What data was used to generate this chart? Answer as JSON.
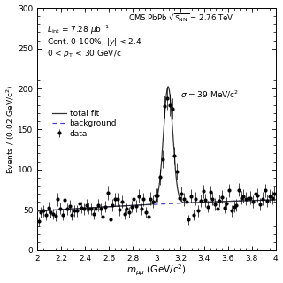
{
  "xlabel": "m_{μμ} (GeV/c^{2})",
  "ylabel": "Events / (0.02 GeV/c^{2})",
  "xlim": [
    2.0,
    4.0
  ],
  "ylim": [
    0,
    300
  ],
  "yticks": [
    0,
    50,
    100,
    150,
    200,
    250,
    300
  ],
  "xticks": [
    2.0,
    2.2,
    2.4,
    2.6,
    2.8,
    3.0,
    3.2,
    3.4,
    3.6,
    3.8,
    4.0
  ],
  "jpsi_mass": 3.097,
  "jpsi_sigma": 0.039,
  "jpsi_amplitude": 145.0,
  "bg_a": 48.5,
  "bg_b": 10.0,
  "bg_c": -1.5,
  "data_seed": 7,
  "background_color": "#ffffff",
  "data_color": "#000000",
  "fit_color": "#333333",
  "bg_color": "#4444cc",
  "legend_marker": "data",
  "legend_fit": "total fit",
  "legend_bg": "background",
  "text_cms": "CMS PbPb",
  "text_energy": " = 2.76 TeV",
  "text_lumi": "$L_{\\rm int}$ = 7.28 μb$^{-1}$",
  "text_cent": "Cent. 0-100%, |y| < 2.4",
  "text_pt": "0 < $p_{\\rm T}$ < 30 GeV/c",
  "text_sigma": "σ = 39 MeV/c$^2$"
}
